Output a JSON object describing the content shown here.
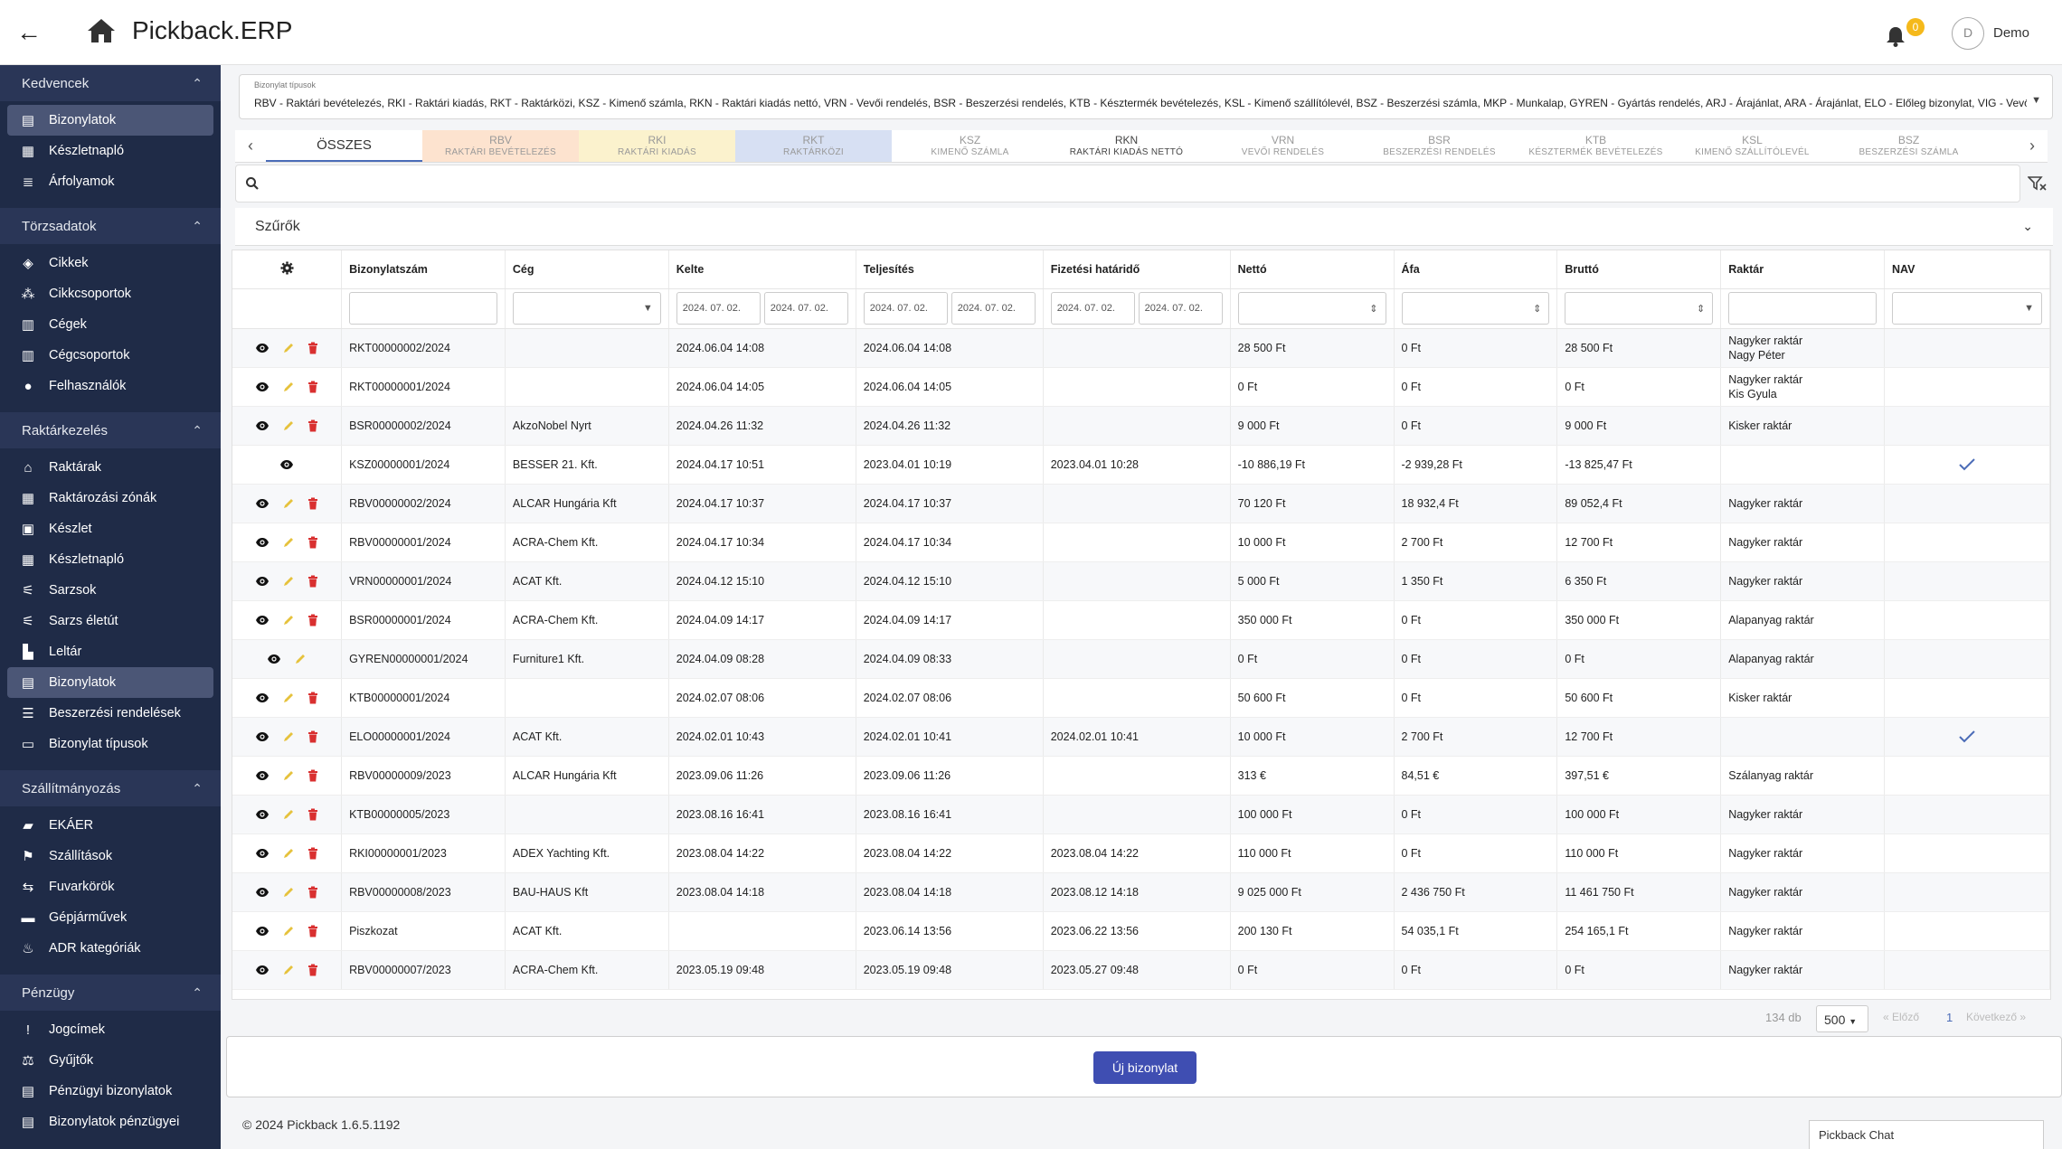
{
  "header": {
    "title": "Pickback.ERP",
    "notifications": "0",
    "avatar_letter": "D",
    "user": "Demo"
  },
  "sidebar": [
    {
      "section": "Kedvencek",
      "items": [
        {
          "label": "Bizonylatok",
          "icon": "document-icon",
          "active": true
        },
        {
          "label": "Készletnapló",
          "icon": "log-icon"
        },
        {
          "label": "Árfolyamok",
          "icon": "list-icon"
        }
      ]
    },
    {
      "section": "Törzsadatok",
      "items": [
        {
          "label": "Cikkek",
          "icon": "box-icon"
        },
        {
          "label": "Cikkcsoportok",
          "icon": "boxes-icon"
        },
        {
          "label": "Cégek",
          "icon": "company-icon"
        },
        {
          "label": "Cégcsoportok",
          "icon": "company-group-icon"
        },
        {
          "label": "Felhasználók",
          "icon": "user-icon"
        }
      ]
    },
    {
      "section": "Raktárkezelés",
      "items": [
        {
          "label": "Raktárak",
          "icon": "warehouse-icon"
        },
        {
          "label": "Raktározási zónák",
          "icon": "grid-icon"
        },
        {
          "label": "Készlet",
          "icon": "stock-icon"
        },
        {
          "label": "Készletnapló",
          "icon": "log-icon"
        },
        {
          "label": "Sarzsok",
          "icon": "batch-icon"
        },
        {
          "label": "Sarzs életút",
          "icon": "batch-path-icon"
        },
        {
          "label": "Leltár",
          "icon": "inventory-icon"
        },
        {
          "label": "Bizonylatok",
          "icon": "document-icon",
          "active": true
        },
        {
          "label": "Beszerzési rendelések",
          "icon": "cart-icon"
        },
        {
          "label": "Bizonylat típusok",
          "icon": "doc-type-icon"
        }
      ]
    },
    {
      "section": "Szállítmányozás",
      "items": [
        {
          "label": "EKÁER",
          "icon": "truck-icon"
        },
        {
          "label": "Szállítások",
          "icon": "dolly-icon"
        },
        {
          "label": "Fuvarkörök",
          "icon": "route-icon"
        },
        {
          "label": "Gépjárművek",
          "icon": "car-icon"
        },
        {
          "label": "ADR kategóriák",
          "icon": "flame-icon"
        }
      ]
    },
    {
      "section": "Pénzügy",
      "items": [
        {
          "label": "Jogcímek",
          "icon": "exclamation-icon"
        },
        {
          "label": "Gyűjtők",
          "icon": "scale-icon"
        },
        {
          "label": "Pénzügyi bizonylatok",
          "icon": "money-icon"
        },
        {
          "label": "Bizonylatok pénzügyei",
          "icon": "money-doc-icon"
        }
      ]
    }
  ],
  "types": {
    "label": "Bizonylat típusok",
    "value": "RBV - Raktári bevételezés, RKI - Raktári kiadás, RKT - Raktárközi, KSZ - Kimenő számla, RKN - Raktári kiadás nettó, VRN - Vevői rendelés, BSR - Beszerzési rendelés, KTB - Késztermék bevételezés, KSL - Kimenő szállítólevél, BSZ - Beszerzési számla, MKP - Munkalap, GYREN - Gyártás rendelés, ARJ - Árajánlat, ARA - Árajánlat, ELO - Előleg bizonylat, VIG - Vevői igé..."
  },
  "tabs": [
    {
      "code": "ÖSSZES",
      "name": "",
      "color": "#ffffff",
      "selected": true
    },
    {
      "code": "RBV",
      "name": "RAKTÁRI BEVÉTELEZÉS",
      "color": "#fde3cf"
    },
    {
      "code": "RKI",
      "name": "RAKTÁRI KIADÁS",
      "color": "#fbf2cd"
    },
    {
      "code": "RKT",
      "name": "RAKTÁRKÖZI",
      "color": "#d7e0f3"
    },
    {
      "code": "KSZ",
      "name": "KIMENŐ SZÁMLA",
      "color": "#ffffff"
    },
    {
      "code": "RKN",
      "name": "RAKTÁRI KIADÁS NETTÓ",
      "color": "#ffffff",
      "dark": true
    },
    {
      "code": "VRN",
      "name": "VEVŐI RENDELÉS",
      "color": "#ffffff"
    },
    {
      "code": "BSR",
      "name": "BESZERZÉSI RENDELÉS",
      "color": "#ffffff"
    },
    {
      "code": "KTB",
      "name": "KÉSZTERMÉK BEVÉTELEZÉS",
      "color": "#ffffff"
    },
    {
      "code": "KSL",
      "name": "KIMENŐ SZÁLLÍTÓLEVÉL",
      "color": "#ffffff"
    },
    {
      "code": "BSZ",
      "name": "BESZERZÉSI SZÁMLA",
      "color": "#ffffff"
    }
  ],
  "search": {
    "placeholder": ""
  },
  "filters": {
    "label": "Szűrők"
  },
  "table": {
    "columns": [
      "Bizonylatszám",
      "Cég",
      "Kelte",
      "Teljesítés",
      "Fizetési határidő",
      "Nettó",
      "Áfa",
      "Bruttó",
      "Raktár",
      "NAV"
    ],
    "filter_dates": {
      "kelte": [
        "2024. 07. 02.",
        "2024. 07. 02."
      ],
      "teljesites": [
        "2024. 07. 02.",
        "2024. 07. 02."
      ],
      "fizetesi": [
        "2024. 07. 02.",
        "2024. 07. 02."
      ]
    },
    "rows": [
      {
        "num": "RKT00000002/2024",
        "ceg": "",
        "kelte": "2024.06.04 14:08",
        "telj": "2024.06.04 14:08",
        "fiz": "",
        "netto": "28 500 Ft",
        "afa": "0 Ft",
        "brutto": "28 500 Ft",
        "raktar": "Nagyker raktár",
        "raktar2": "Nagy Péter",
        "nav": false,
        "actions": "ved"
      },
      {
        "num": "RKT00000001/2024",
        "ceg": "",
        "kelte": "2024.06.04 14:05",
        "telj": "2024.06.04 14:05",
        "fiz": "",
        "netto": "0 Ft",
        "afa": "0 Ft",
        "brutto": "0 Ft",
        "raktar": "Nagyker raktár",
        "raktar2": "Kis Gyula",
        "nav": false,
        "actions": "ved"
      },
      {
        "num": "BSR00000002/2024",
        "ceg": "AkzoNobel Nyrt",
        "kelte": "2024.04.26 11:32",
        "telj": "2024.04.26 11:32",
        "fiz": "",
        "netto": "9 000 Ft",
        "afa": "0 Ft",
        "brutto": "9 000 Ft",
        "raktar": "Kisker raktár",
        "raktar2": "",
        "nav": false,
        "actions": "ved"
      },
      {
        "num": "KSZ00000001/2024",
        "ceg": "BESSER 21. Kft.",
        "kelte": "2024.04.17 10:51",
        "telj": "2023.04.01 10:19",
        "fiz": "2023.04.01 10:28",
        "netto": "-10 886,19 Ft",
        "afa": "-2 939,28 Ft",
        "brutto": "-13 825,47 Ft",
        "raktar": "",
        "raktar2": "",
        "nav": true,
        "actions": "v"
      },
      {
        "num": "RBV00000002/2024",
        "ceg": "ALCAR Hungária Kft",
        "kelte": "2024.04.17 10:37",
        "telj": "2024.04.17 10:37",
        "fiz": "",
        "netto": "70 120 Ft",
        "afa": "18 932,4 Ft",
        "brutto": "89 052,4 Ft",
        "raktar": "Nagyker raktár",
        "raktar2": "",
        "nav": false,
        "actions": "ved"
      },
      {
        "num": "RBV00000001/2024",
        "ceg": "ACRA-Chem Kft.",
        "kelte": "2024.04.17 10:34",
        "telj": "2024.04.17 10:34",
        "fiz": "",
        "netto": "10 000 Ft",
        "afa": "2 700 Ft",
        "brutto": "12 700 Ft",
        "raktar": "Nagyker raktár",
        "raktar2": "",
        "nav": false,
        "actions": "ved"
      },
      {
        "num": "VRN00000001/2024",
        "ceg": "ACAT Kft.",
        "kelte": "2024.04.12 15:10",
        "telj": "2024.04.12 15:10",
        "fiz": "",
        "netto": "5 000 Ft",
        "afa": "1 350 Ft",
        "brutto": "6 350 Ft",
        "raktar": "Nagyker raktár",
        "raktar2": "",
        "nav": false,
        "actions": "ved"
      },
      {
        "num": "BSR00000001/2024",
        "ceg": "ACRA-Chem Kft.",
        "kelte": "2024.04.09 14:17",
        "telj": "2024.04.09 14:17",
        "fiz": "",
        "netto": "350 000 Ft",
        "afa": "0 Ft",
        "brutto": "350 000 Ft",
        "raktar": "Alapanyag raktár",
        "raktar2": "",
        "nav": false,
        "actions": "ved"
      },
      {
        "num": "GYREN00000001/2024",
        "ceg": "Furniture1 Kft.",
        "kelte": "2024.04.09 08:28",
        "telj": "2024.04.09 08:33",
        "fiz": "",
        "netto": "0 Ft",
        "afa": "0 Ft",
        "brutto": "0 Ft",
        "raktar": "Alapanyag raktár",
        "raktar2": "",
        "nav": false,
        "actions": "ve"
      },
      {
        "num": "KTB00000001/2024",
        "ceg": "",
        "kelte": "2024.02.07 08:06",
        "telj": "2024.02.07 08:06",
        "fiz": "",
        "netto": "50 600 Ft",
        "afa": "0 Ft",
        "brutto": "50 600 Ft",
        "raktar": "Kisker raktár",
        "raktar2": "",
        "nav": false,
        "actions": "ved"
      },
      {
        "num": "ELO00000001/2024",
        "ceg": "ACAT Kft.",
        "kelte": "2024.02.01 10:43",
        "telj": "2024.02.01 10:41",
        "fiz": "2024.02.01 10:41",
        "netto": "10 000 Ft",
        "afa": "2 700 Ft",
        "brutto": "12 700 Ft",
        "raktar": "",
        "raktar2": "",
        "nav": true,
        "actions": "ved"
      },
      {
        "num": "RBV00000009/2023",
        "ceg": "ALCAR Hungária Kft",
        "kelte": "2023.09.06 11:26",
        "telj": "2023.09.06 11:26",
        "fiz": "",
        "netto": "313 €",
        "afa": "84,51 €",
        "brutto": "397,51 €",
        "raktar": "Szálanyag raktár",
        "raktar2": "",
        "nav": false,
        "actions": "ved"
      },
      {
        "num": "KTB00000005/2023",
        "ceg": "",
        "kelte": "2023.08.16 16:41",
        "telj": "2023.08.16 16:41",
        "fiz": "",
        "netto": "100 000 Ft",
        "afa": "0 Ft",
        "brutto": "100 000 Ft",
        "raktar": "Nagyker raktár",
        "raktar2": "",
        "nav": false,
        "actions": "ved"
      },
      {
        "num": "RKI00000001/2023",
        "ceg": "ADEX Yachting Kft.",
        "kelte": "2023.08.04 14:22",
        "telj": "2023.08.04 14:22",
        "fiz": "2023.08.04 14:22",
        "netto": "110 000 Ft",
        "afa": "0 Ft",
        "brutto": "110 000 Ft",
        "raktar": "Nagyker raktár",
        "raktar2": "",
        "nav": false,
        "actions": "ved"
      },
      {
        "num": "RBV00000008/2023",
        "ceg": "BAU-HAUS Kft",
        "kelte": "2023.08.04 14:18",
        "telj": "2023.08.04 14:18",
        "fiz": "2023.08.12 14:18",
        "netto": "9 025 000 Ft",
        "afa": "2 436 750 Ft",
        "brutto": "11 461 750 Ft",
        "raktar": "Nagyker raktár",
        "raktar2": "",
        "nav": false,
        "actions": "ved"
      },
      {
        "num": "Piszkozat",
        "ceg": "ACAT Kft.",
        "kelte": "",
        "telj": "2023.06.14 13:56",
        "fiz": "2023.06.22 13:56",
        "netto": "200 130 Ft",
        "afa": "54 035,1 Ft",
        "brutto": "254 165,1 Ft",
        "raktar": "Nagyker raktár",
        "raktar2": "",
        "nav": false,
        "actions": "ved"
      },
      {
        "num": "RBV00000007/2023",
        "ceg": "ACRA-Chem Kft.",
        "kelte": "2023.05.19 09:48",
        "telj": "2023.05.19 09:48",
        "fiz": "2023.05.27 09:48",
        "netto": "0 Ft",
        "afa": "0 Ft",
        "brutto": "0 Ft",
        "raktar": "Nagyker raktár",
        "raktar2": "",
        "nav": false,
        "actions": "ved"
      }
    ]
  },
  "pager": {
    "count": "134 db",
    "page_size": "500",
    "prev": "« Előző",
    "page": "1",
    "next": "Következő »"
  },
  "new_button": "Új bizonylat",
  "footer": "© 2024 Pickback 1.6.5.1192",
  "chat": "Pickback Chat",
  "colors": {
    "sidebar": "#1f2b47",
    "accent": "#3f4eb2",
    "edit": "#e6c23c",
    "delete": "#d93030",
    "check": "#4b6cb7"
  }
}
